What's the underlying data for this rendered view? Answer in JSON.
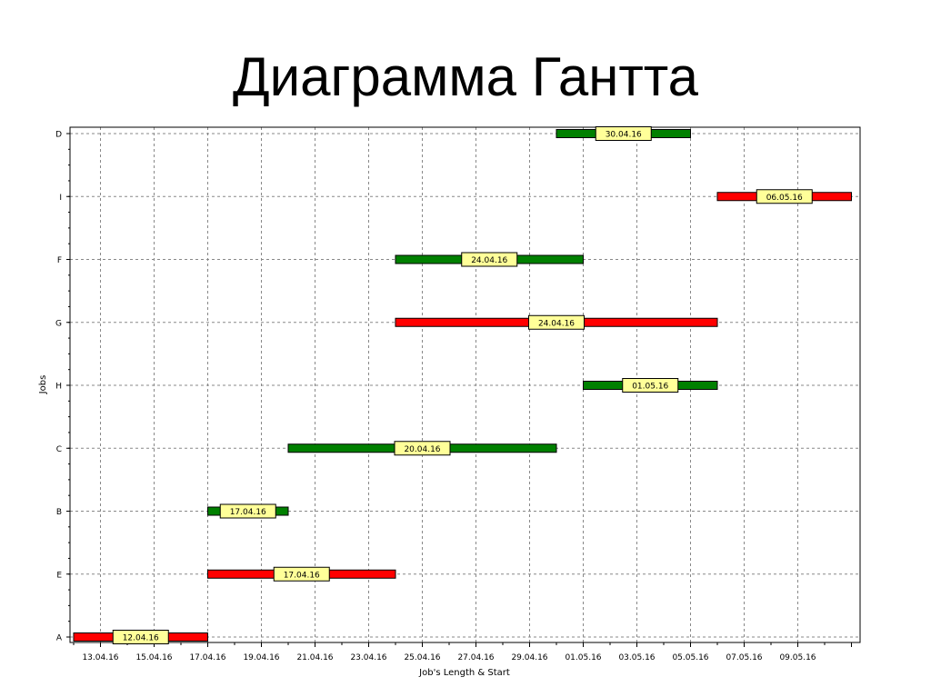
{
  "slide": {
    "title": "Диаграмма Гантта"
  },
  "chart_data": {
    "type": "gantt",
    "xlabel": "Job's Length & Start",
    "ylabel": "Jobs",
    "grid": true,
    "x_ticks": [
      "13.04.16",
      "15.04.16",
      "17.04.16",
      "19.04.16",
      "21.04.16",
      "23.04.16",
      "25.04.16",
      "27.04.16",
      "29.04.16",
      "01.05.16",
      "03.05.16",
      "05.05.16",
      "07.05.16",
      "09.05.16"
    ],
    "x_range": [
      "2016-04-12",
      "2016-05-11"
    ],
    "jobs": [
      "A",
      "E",
      "B",
      "C",
      "H",
      "G",
      "F",
      "I",
      "D"
    ],
    "tasks": [
      {
        "job": "A",
        "start": "2016-04-12",
        "end": "2016-04-17",
        "label": "12.04.16",
        "color": "#ff0000"
      },
      {
        "job": "E",
        "start": "2016-04-17",
        "end": "2016-04-24",
        "label": "17.04.16",
        "color": "#ff0000"
      },
      {
        "job": "B",
        "start": "2016-04-17",
        "end": "2016-04-20",
        "label": "17.04.16",
        "color": "#008000"
      },
      {
        "job": "C",
        "start": "2016-04-20",
        "end": "2016-04-30",
        "label": "20.04.16",
        "color": "#008000"
      },
      {
        "job": "H",
        "start": "2016-05-01",
        "end": "2016-05-06",
        "label": "01.05.16",
        "color": "#008000"
      },
      {
        "job": "G",
        "start": "2016-04-24",
        "end": "2016-05-06",
        "label": "24.04.16",
        "color": "#ff0000"
      },
      {
        "job": "F",
        "start": "2016-04-24",
        "end": "2016-05-01",
        "label": "24.04.16",
        "color": "#008000"
      },
      {
        "job": "I",
        "start": "2016-05-06",
        "end": "2016-05-11",
        "label": "06.05.16",
        "color": "#ff0000"
      },
      {
        "job": "D",
        "start": "2016-04-30",
        "end": "2016-05-05",
        "label": "30.04.16",
        "color": "#008000"
      }
    ],
    "label_box_color": "#ffff99"
  }
}
